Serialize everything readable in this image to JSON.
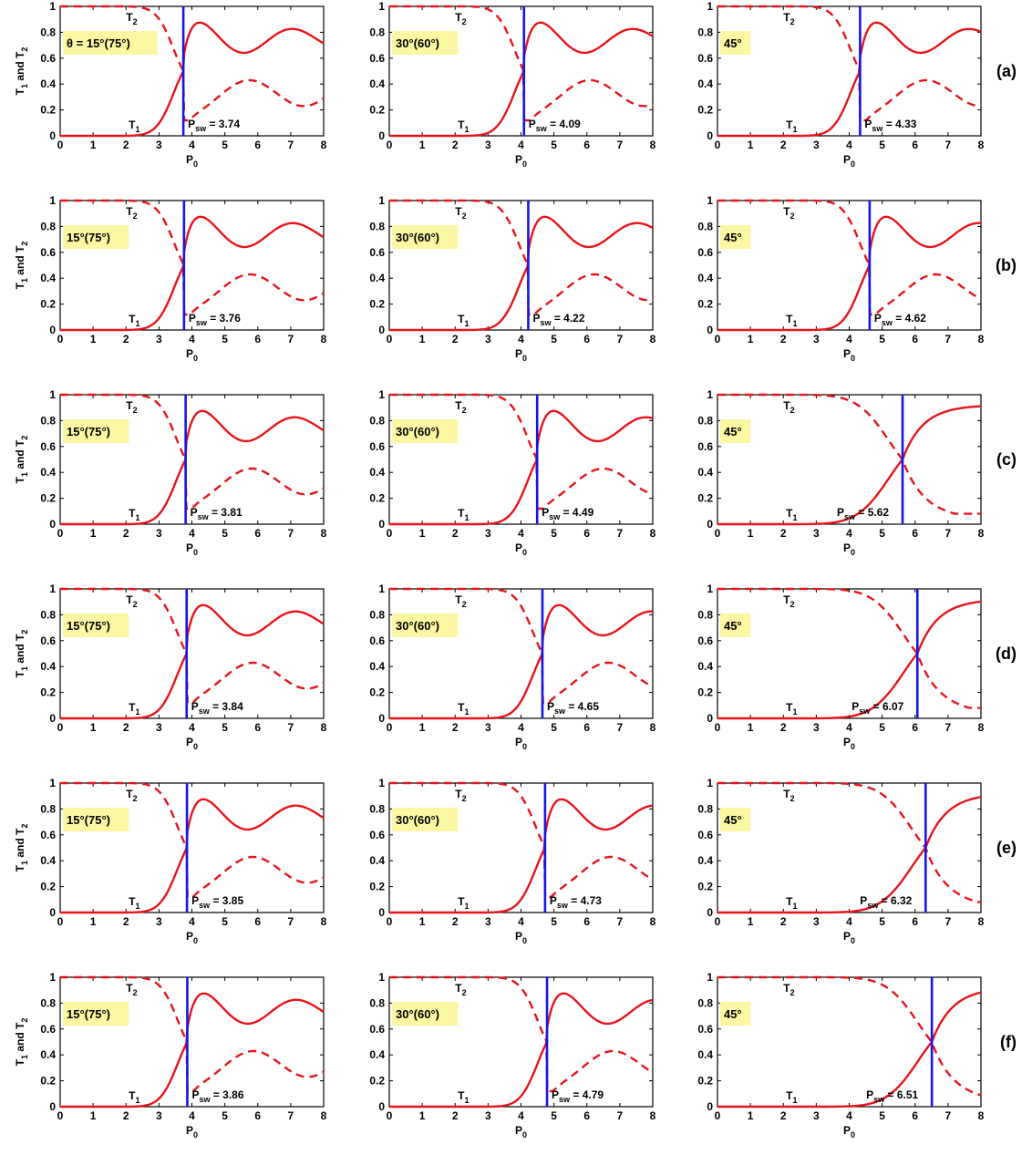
{
  "chart_data": {
    "type": "line",
    "layout": {
      "rows": 6,
      "cols": 3
    },
    "xlabel": {
      "main": "P",
      "sub": "0"
    },
    "ylabel": "T1 and T2",
    "xlim": [
      0,
      8
    ],
    "ylim": [
      0,
      1
    ],
    "xticks": [
      "0",
      "1",
      "2",
      "3",
      "4",
      "5",
      "6",
      "7",
      "8"
    ],
    "yticks": [
      "0",
      "0.2",
      "0.4",
      "0.6",
      "0.8",
      "1"
    ],
    "grid": false,
    "series": [
      {
        "name": "T1",
        "style": "solid",
        "color": "#e8141b"
      },
      {
        "name": "T2",
        "style": "dashed",
        "color": "#e8141b"
      }
    ],
    "switch_line_color": "#1515e6",
    "label_box_color": "#fbf7a3",
    "curve_labels": {
      "t1": {
        "main": "T",
        "sub": "1"
      },
      "t2": {
        "main": "T",
        "sub": "2"
      }
    },
    "psw_label": {
      "main": "P",
      "sub": "sw"
    },
    "angle_labels": [
      "15°(75°)",
      "30°(60°)",
      "45°"
    ],
    "first_angle_prefix": "θ = ",
    "rows": [
      {
        "label": "(a)",
        "panels": [
          {
            "psw": 3.74,
            "psw_text": "3.74",
            "angle": "15°(75°)"
          },
          {
            "psw": 4.09,
            "psw_text": "4.09",
            "angle": "30°(60°)"
          },
          {
            "psw": 4.33,
            "psw_text": "4.33",
            "angle": "45°"
          }
        ]
      },
      {
        "label": "(b)",
        "panels": [
          {
            "psw": 3.76,
            "psw_text": "3.76",
            "angle": "15°(75°)"
          },
          {
            "psw": 4.22,
            "psw_text": "4.22",
            "angle": "30°(60°)"
          },
          {
            "psw": 4.62,
            "psw_text": "4.62",
            "angle": "45°"
          }
        ]
      },
      {
        "label": "(c)",
        "panels": [
          {
            "psw": 3.81,
            "psw_text": "3.81",
            "angle": "15°(75°)"
          },
          {
            "psw": 4.49,
            "psw_text": "4.49",
            "angle": "30°(60°)"
          },
          {
            "psw": 5.62,
            "psw_text": "5.62",
            "angle": "45°"
          }
        ]
      },
      {
        "label": "(d)",
        "panels": [
          {
            "psw": 3.84,
            "psw_text": "3.84",
            "angle": "15°(75°)"
          },
          {
            "psw": 4.65,
            "psw_text": "4.65",
            "angle": "30°(60°)"
          },
          {
            "psw": 6.07,
            "psw_text": "6.07",
            "angle": "45°"
          }
        ]
      },
      {
        "label": "(e)",
        "panels": [
          {
            "psw": 3.85,
            "psw_text": "3.85",
            "angle": "15°(75°)"
          },
          {
            "psw": 4.73,
            "psw_text": "4.73",
            "angle": "30°(60°)"
          },
          {
            "psw": 6.32,
            "psw_text": "6.32",
            "angle": "45°"
          }
        ]
      },
      {
        "label": "(f)",
        "panels": [
          {
            "psw": 3.86,
            "psw_text": "3.86",
            "angle": "15°(75°)"
          },
          {
            "psw": 4.79,
            "psw_text": "4.79",
            "angle": "30°(60°)"
          },
          {
            "psw": 6.51,
            "psw_text": "6.51",
            "angle": "45°"
          }
        ]
      }
    ]
  }
}
